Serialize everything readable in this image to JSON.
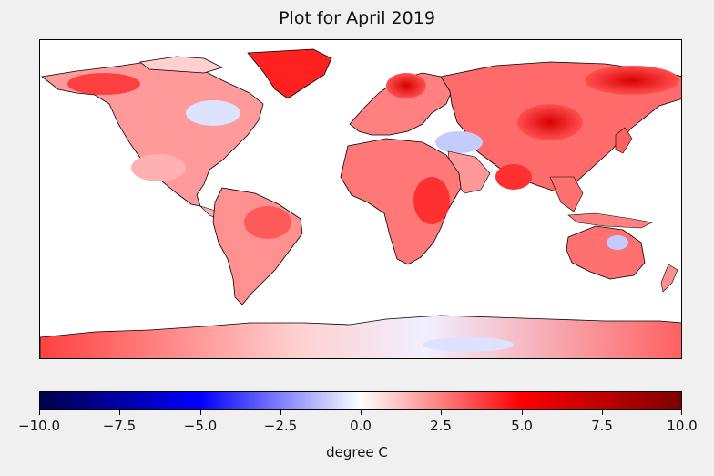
{
  "title": "Plot for April 2019",
  "colorbar": {
    "label": "degree C",
    "min": -10.0,
    "max": 10.0,
    "ticks": [
      "−10.0",
      "−7.5",
      "−5.0",
      "−2.5",
      "0.0",
      "2.5",
      "5.0",
      "7.5",
      "10.0"
    ],
    "colors": [
      "#00004c",
      "#0000ff",
      "#ffffff",
      "#ff0000",
      "#800000"
    ]
  },
  "map": {
    "projection": "Plate Carrée",
    "ocean_color": "#ffffff",
    "coastline_color": "#000000",
    "warm_anomaly_color": "#ff0000",
    "cool_anomaly_color": "#b0c0ff"
  }
}
